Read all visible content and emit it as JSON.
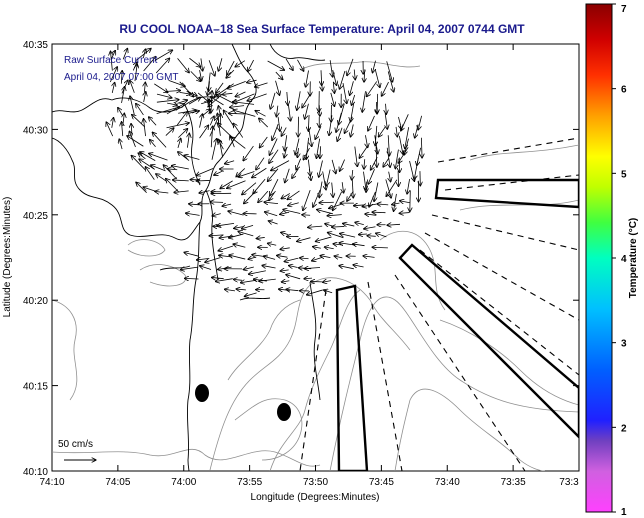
{
  "chart_data": {
    "type": "map",
    "title": "RU COOL  NOAA–18  Sea Surface Temperature:  April 04, 2007 0744 GMT",
    "legend": {
      "line1": "Raw Surface Current",
      "line2": "April 04, 2007 07:00 GMT"
    },
    "xlabel": "Longitude (Degrees:Minutes)",
    "ylabel": "Latitude (Degrees:Minutes)",
    "x_ticks": [
      "74:10",
      "74:05",
      "74:00",
      "73:55",
      "73:50",
      "73:45",
      "73:40",
      "73:35",
      "73:3"
    ],
    "y_ticks": [
      "40:10",
      "40:15",
      "40:20",
      "40:25",
      "40:30",
      "40:35"
    ],
    "xlim_minutes_west": [
      70.0,
      10.0
    ],
    "ylim_minutes_north": [
      10.0,
      35.0
    ],
    "scale_label": "50 cm/s",
    "colorbar": {
      "label": "Temperature (°C)",
      "ticks": [
        "1",
        "2",
        "3",
        "4",
        "5",
        "6",
        "7"
      ],
      "range": [
        1,
        7
      ]
    },
    "markers": [
      {
        "lon": "73:58.8",
        "lat": "40:14.5"
      },
      {
        "lon": "73:52.3",
        "lat": "40:13.5"
      }
    ]
  }
}
